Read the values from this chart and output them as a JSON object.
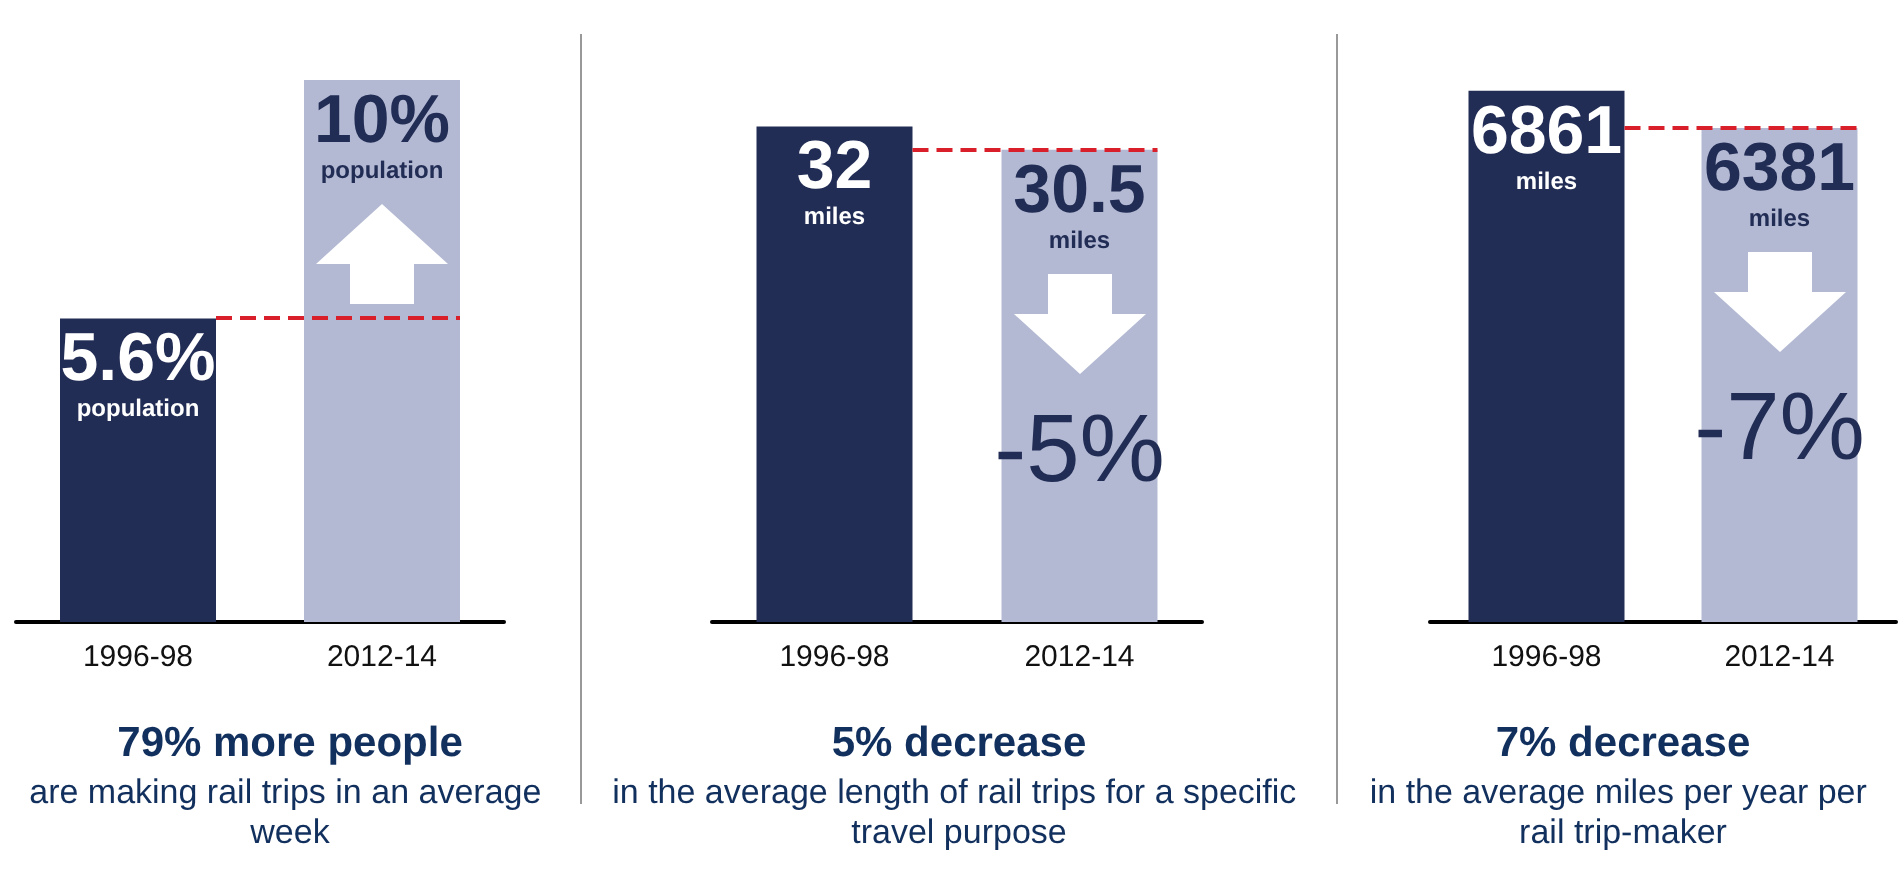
{
  "chart_data": [
    {
      "type": "bar",
      "title": "79% more people",
      "subtitle": "are making rail trips in an average week",
      "categories": [
        "1996-98",
        "2012-14"
      ],
      "values": [
        5.6,
        10
      ],
      "colors": [
        "#222d55",
        "#b3b9d3"
      ],
      "value_labels": [
        "5.6%\npopulation",
        "10%\npopulation"
      ],
      "tick_labels": "x",
      "ref_lines": [
        {
          "axis": "y",
          "value": 5.6,
          "color": "#d9202a",
          "line_style": "dashed"
        }
      ]
    },
    {
      "type": "bar",
      "title": "5% decrease",
      "subtitle": "in the average length of rail trips for a specific travel purpose",
      "categories": [
        "1996-98",
        "2012-14"
      ],
      "values": [
        32,
        30.5
      ],
      "colors": [
        "#222d55",
        "#b3b9d3"
      ],
      "value_labels": [
        "32\nmiles",
        "30.5\nmiles"
      ],
      "tick_labels": "x",
      "annotations": [
        "-5%"
      ],
      "ref_lines": [
        {
          "axis": "y",
          "value": 30.5,
          "color": "#d9202a",
          "line_style": "dashed"
        }
      ]
    },
    {
      "type": "bar",
      "title": "7% decrease",
      "subtitle": "in the average miles per year per rail trip-maker",
      "categories": [
        "1996-98",
        "2012-14"
      ],
      "values": [
        6861,
        6381
      ],
      "colors": [
        "#222d55",
        "#b3b9d3"
      ],
      "value_labels": [
        "6861\nmiles",
        "6381\nmiles"
      ],
      "tick_labels": "x",
      "annotations": [
        "-7%"
      ],
      "ref_lines": [
        {
          "axis": "y",
          "value": 6381,
          "color": "#d9202a",
          "line_style": "dashed"
        }
      ]
    }
  ]
}
